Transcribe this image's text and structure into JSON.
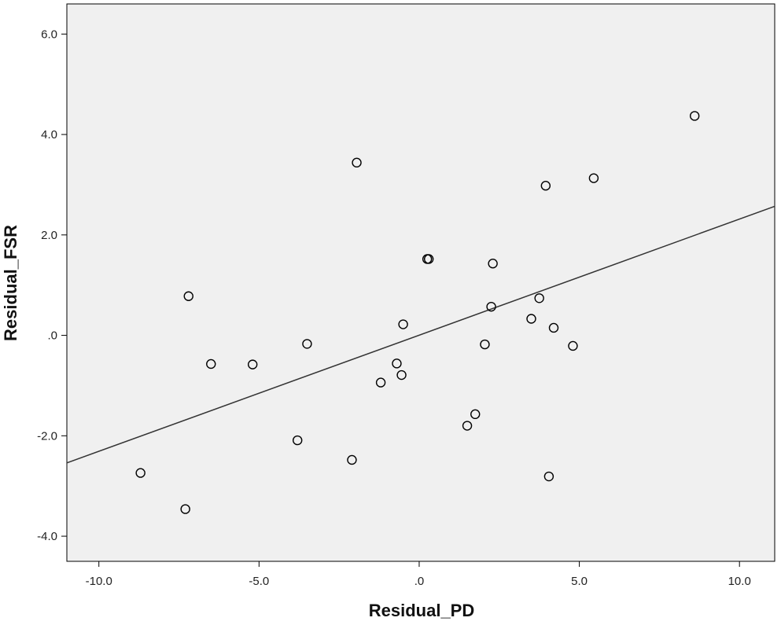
{
  "chart_data": {
    "type": "scatter",
    "title": "",
    "xlabel": "Residual_PD",
    "ylabel": "Residual_FSR",
    "xlim": [
      -11.0,
      11.1
    ],
    "ylim": [
      -4.5,
      6.6
    ],
    "x_ticks": [
      -10.0,
      -5.0,
      0.0,
      5.0,
      10.0
    ],
    "x_tick_labels": [
      "-10.0",
      "-5.0",
      ".0",
      "5.0",
      "10.0"
    ],
    "y_ticks": [
      -4.0,
      -2.0,
      0.0,
      2.0,
      4.0,
      6.0
    ],
    "y_tick_labels": [
      "-4.0",
      "-2.0",
      ".0",
      "2.0",
      "4.0",
      "6.0"
    ],
    "grid": false,
    "legend": "none",
    "plot_background": "#f0f0f0",
    "marker_color": "#000000",
    "points": [
      {
        "x": -8.7,
        "y": -2.74
      },
      {
        "x": -7.3,
        "y": -3.46
      },
      {
        "x": -7.2,
        "y": 0.78
      },
      {
        "x": -6.5,
        "y": -0.57
      },
      {
        "x": -5.2,
        "y": -0.58
      },
      {
        "x": -3.8,
        "y": -2.09
      },
      {
        "x": -3.5,
        "y": -0.17
      },
      {
        "x": -2.1,
        "y": -2.48
      },
      {
        "x": -1.95,
        "y": 3.44
      },
      {
        "x": -1.2,
        "y": -0.94
      },
      {
        "x": -0.7,
        "y": -0.56
      },
      {
        "x": -0.55,
        "y": -0.79
      },
      {
        "x": -0.5,
        "y": 0.22
      },
      {
        "x": 0.25,
        "y": 1.52
      },
      {
        "x": 0.3,
        "y": 1.52
      },
      {
        "x": 1.5,
        "y": -1.8
      },
      {
        "x": 1.75,
        "y": -1.57
      },
      {
        "x": 2.05,
        "y": -0.18
      },
      {
        "x": 2.25,
        "y": 0.57
      },
      {
        "x": 2.3,
        "y": 1.43
      },
      {
        "x": 3.5,
        "y": 0.33
      },
      {
        "x": 3.75,
        "y": 0.74
      },
      {
        "x": 3.95,
        "y": 2.98
      },
      {
        "x": 4.05,
        "y": -2.81
      },
      {
        "x": 4.2,
        "y": 0.15
      },
      {
        "x": 4.8,
        "y": -0.21
      },
      {
        "x": 5.45,
        "y": 3.13
      },
      {
        "x": 8.6,
        "y": 4.37
      }
    ],
    "fit_line": {
      "x": [
        -11.0,
        11.1
      ],
      "y": [
        -2.54,
        2.57
      ]
    }
  }
}
